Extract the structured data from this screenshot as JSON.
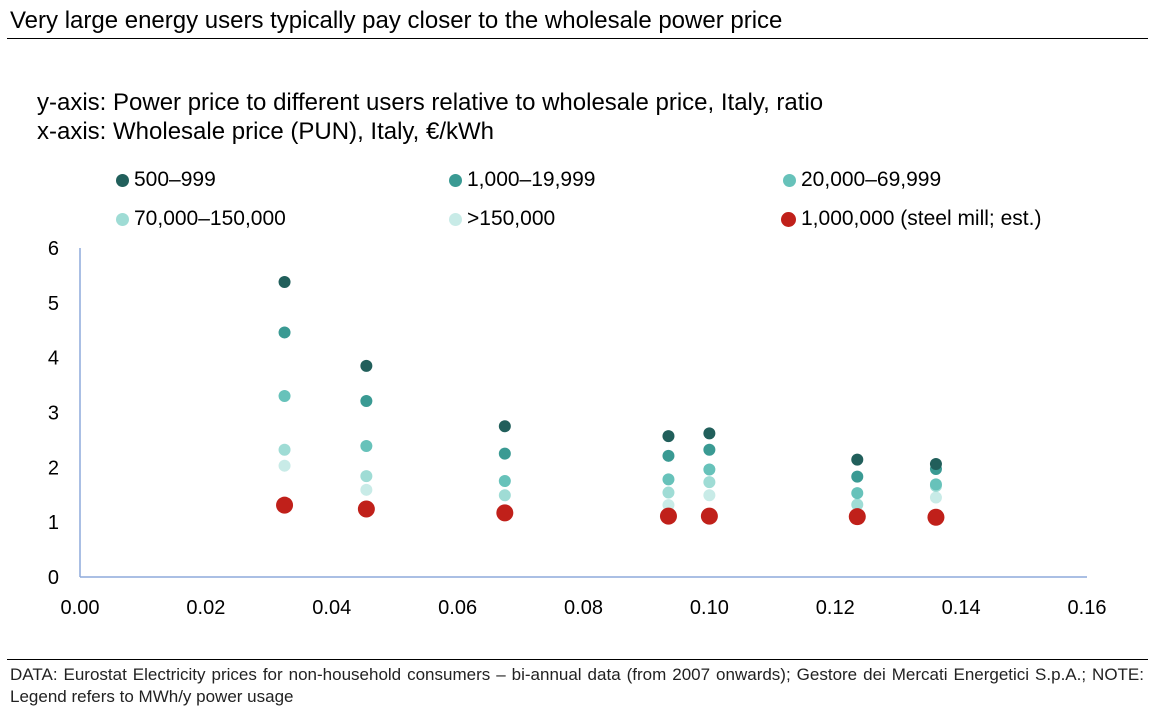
{
  "title": "Very large energy users typically pay closer to the wholesale power price",
  "footer": "DATA: Eurostat Electricity prices for non-household consumers – bi-annual data (from 2007 onwards); Gestore dei Mercati Energetici S.p.A.; NOTE: Legend refers to MWh/y power usage",
  "chart_data": {
    "type": "scatter",
    "title": "",
    "ylabel": "y-axis: Power price to different users relative to wholesale price, Italy, ratio",
    "xlabel": "x-axis: Wholesale price (PUN), Italy, €/kWh",
    "xlim": [
      0,
      0.16
    ],
    "ylim": [
      0,
      6
    ],
    "x_ticks": [
      "0.00",
      "0.02",
      "0.04",
      "0.06",
      "0.08",
      "0.10",
      "0.12",
      "0.14",
      "0.16"
    ],
    "y_ticks": [
      "0",
      "1",
      "2",
      "3",
      "4",
      "5",
      "6"
    ],
    "grid": false,
    "legend_position": "top",
    "x": [
      0.0325,
      0.0455,
      0.0675,
      0.0935,
      0.1,
      0.1235,
      0.136
    ],
    "series": [
      {
        "name": "500–999",
        "color": "#215f5b",
        "y": [
          5.38,
          3.85,
          2.75,
          2.57,
          2.62,
          2.14,
          2.06
        ]
      },
      {
        "name": "1,000–19,999",
        "color": "#3a9a93",
        "y": [
          4.46,
          3.21,
          2.25,
          2.21,
          2.32,
          1.83,
          1.97
        ]
      },
      {
        "name": "20,000–69,999",
        "color": "#67c2ba",
        "y": [
          3.3,
          2.39,
          1.75,
          1.78,
          1.96,
          1.53,
          1.69
        ]
      },
      {
        "name": "70,000–150,000",
        "color": "#9fdcd5",
        "y": [
          2.32,
          1.84,
          1.49,
          1.54,
          1.73,
          1.32,
          1.66
        ]
      },
      {
        "name": ">150,000",
        "color": "#c8ebe7",
        "y": [
          2.03,
          1.59,
          null,
          1.31,
          1.49,
          null,
          1.45
        ]
      },
      {
        "name": "1,000,000 (steel mill; est.)",
        "color": "#c0201a",
        "y": [
          1.31,
          1.24,
          1.17,
          1.11,
          1.11,
          1.1,
          1.09
        ]
      }
    ],
    "axis_color": "#8eaadb"
  }
}
